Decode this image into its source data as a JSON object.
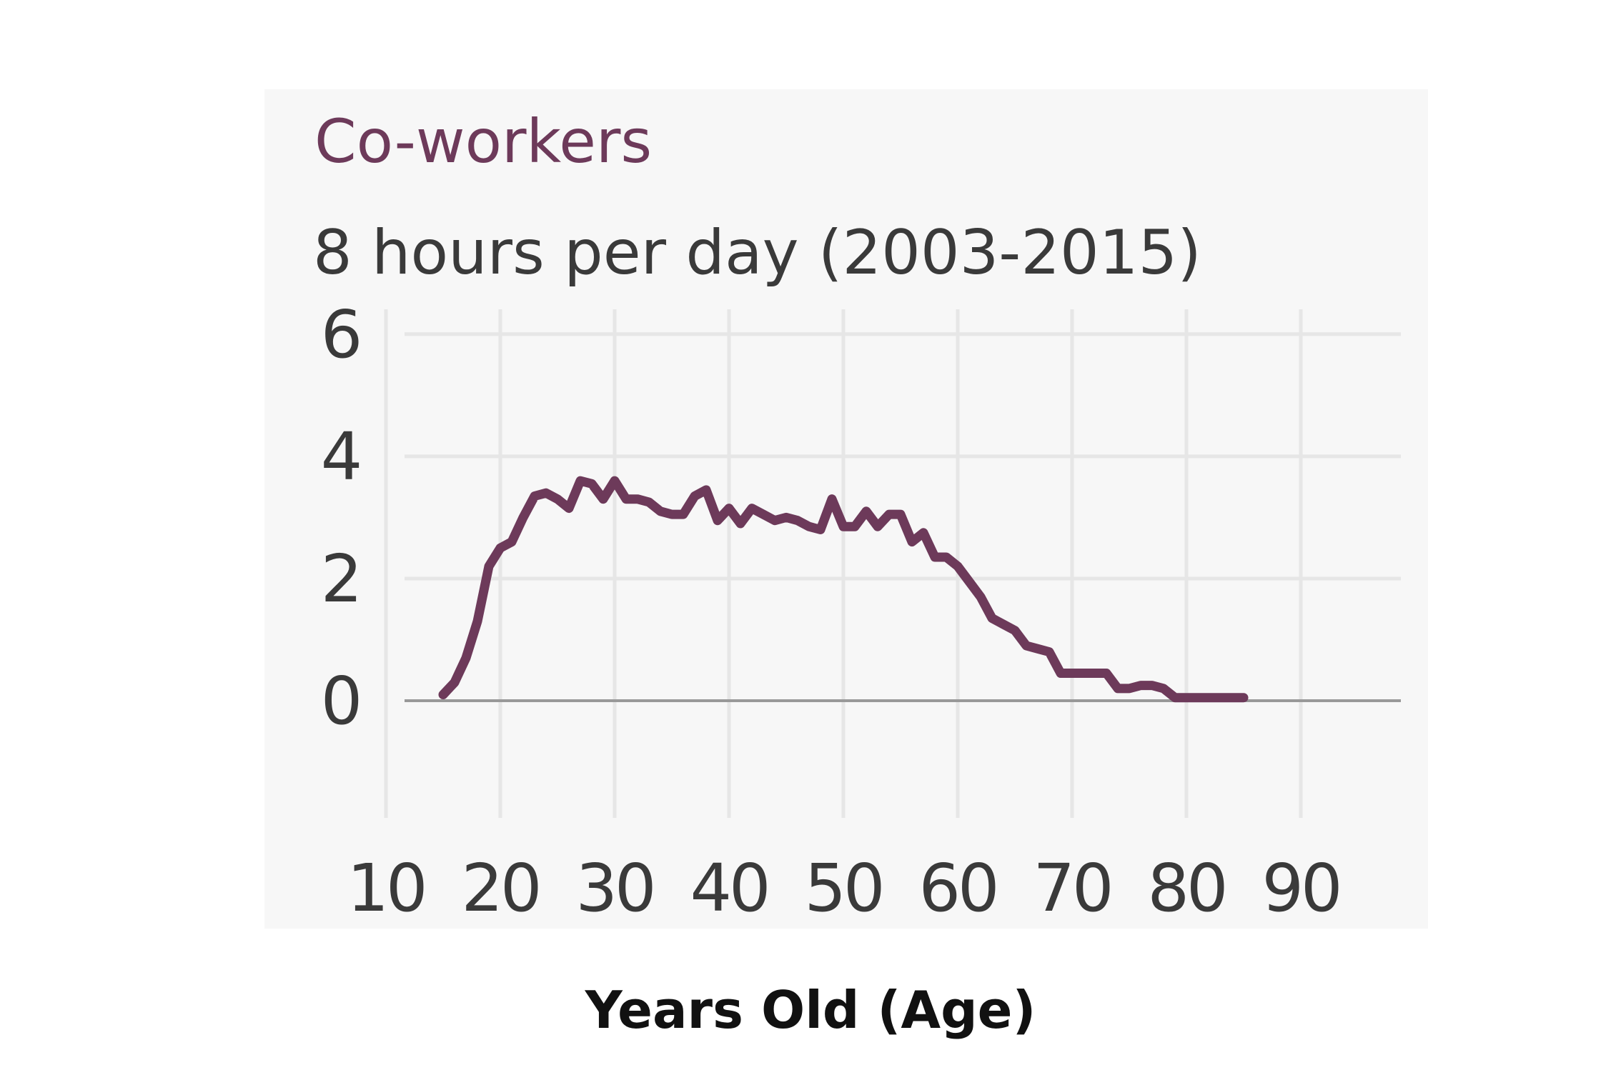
{
  "chart_data": {
    "type": "line",
    "title": "Co-workers",
    "subtitle": "8 hours per day (2003-2015)",
    "xlabel": "Years Old (Age)",
    "ylabel": "",
    "xlim": [
      5,
      95
    ],
    "ylim": [
      -1.8,
      6.5
    ],
    "x_ticks": [
      10,
      20,
      30,
      40,
      50,
      60,
      70,
      80,
      90
    ],
    "y_ticks": [
      0,
      2,
      4,
      6
    ],
    "grid": true,
    "legend": "none",
    "colors": {
      "series": "#6d3a5a",
      "title": "#6d3a5a",
      "subtitle": "#3a3a3a",
      "tick_labels": "#3a3a3a",
      "grid": "#e6e6e6",
      "zero_line": "#999999",
      "background": "#f7f7f7"
    },
    "series": [
      {
        "x": [
          15,
          16,
          17,
          18,
          19,
          20,
          21,
          22,
          23,
          24,
          25,
          26,
          27,
          28,
          29,
          30,
          31,
          32,
          33,
          34,
          35,
          36,
          37,
          38,
          39,
          40,
          41,
          42,
          43,
          44,
          45,
          46,
          47,
          48,
          49,
          50,
          51,
          52,
          53,
          54,
          55,
          56,
          57,
          58,
          59,
          60,
          61,
          62,
          63,
          64,
          65,
          66,
          67,
          68,
          69,
          70,
          71,
          72,
          73,
          74,
          75,
          76,
          77,
          78,
          79,
          80,
          81,
          82,
          83,
          84,
          85
        ],
        "y": [
          0.1,
          0.3,
          0.7,
          1.3,
          2.2,
          2.5,
          2.6,
          3.0,
          3.35,
          3.4,
          3.3,
          3.15,
          3.6,
          3.55,
          3.3,
          3.6,
          3.3,
          3.3,
          3.25,
          3.1,
          3.05,
          3.05,
          3.35,
          3.45,
          2.95,
          3.15,
          2.9,
          3.15,
          3.05,
          2.95,
          3.0,
          2.95,
          2.85,
          2.8,
          3.3,
          2.85,
          2.85,
          3.1,
          2.85,
          3.05,
          3.05,
          2.6,
          2.75,
          2.35,
          2.35,
          2.2,
          1.95,
          1.7,
          1.35,
          1.25,
          1.15,
          0.9,
          0.85,
          0.8,
          0.45,
          0.45,
          0.45,
          0.45,
          0.45,
          0.2,
          0.2,
          0.25,
          0.25,
          0.2,
          0.05,
          0.05,
          0.05,
          0.05,
          0.05,
          0.05,
          0.05
        ]
      }
    ]
  }
}
